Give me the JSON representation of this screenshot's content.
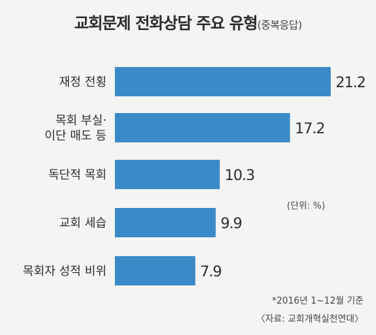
{
  "title": "교회문제 전화상담 주요 유형",
  "subtitle": "(중복응답)",
  "unit_label": "(단위: %)",
  "footnote_period": "*2016년 1~12월 기준",
  "footnote_source": "〈자료: 교회개혁실천연대〉",
  "colors": {
    "bar": "#3a8ac7",
    "background": "#f4f4f2"
  },
  "chart_data": {
    "type": "bar",
    "orientation": "horizontal",
    "categories": [
      [
        "재정 전횡"
      ],
      [
        "목회 부실·",
        "이단 매도 등"
      ],
      [
        "독단적 목회"
      ],
      [
        "교회 세습"
      ],
      [
        "목회자 성적 비위"
      ]
    ],
    "values": [
      21.2,
      17.2,
      10.3,
      9.9,
      7.9
    ],
    "value_labels": [
      "21.2",
      "17.2",
      "10.3",
      "9.9",
      "7.9"
    ],
    "xlim": [
      0,
      21.2
    ],
    "grid": false,
    "legend": "none"
  }
}
